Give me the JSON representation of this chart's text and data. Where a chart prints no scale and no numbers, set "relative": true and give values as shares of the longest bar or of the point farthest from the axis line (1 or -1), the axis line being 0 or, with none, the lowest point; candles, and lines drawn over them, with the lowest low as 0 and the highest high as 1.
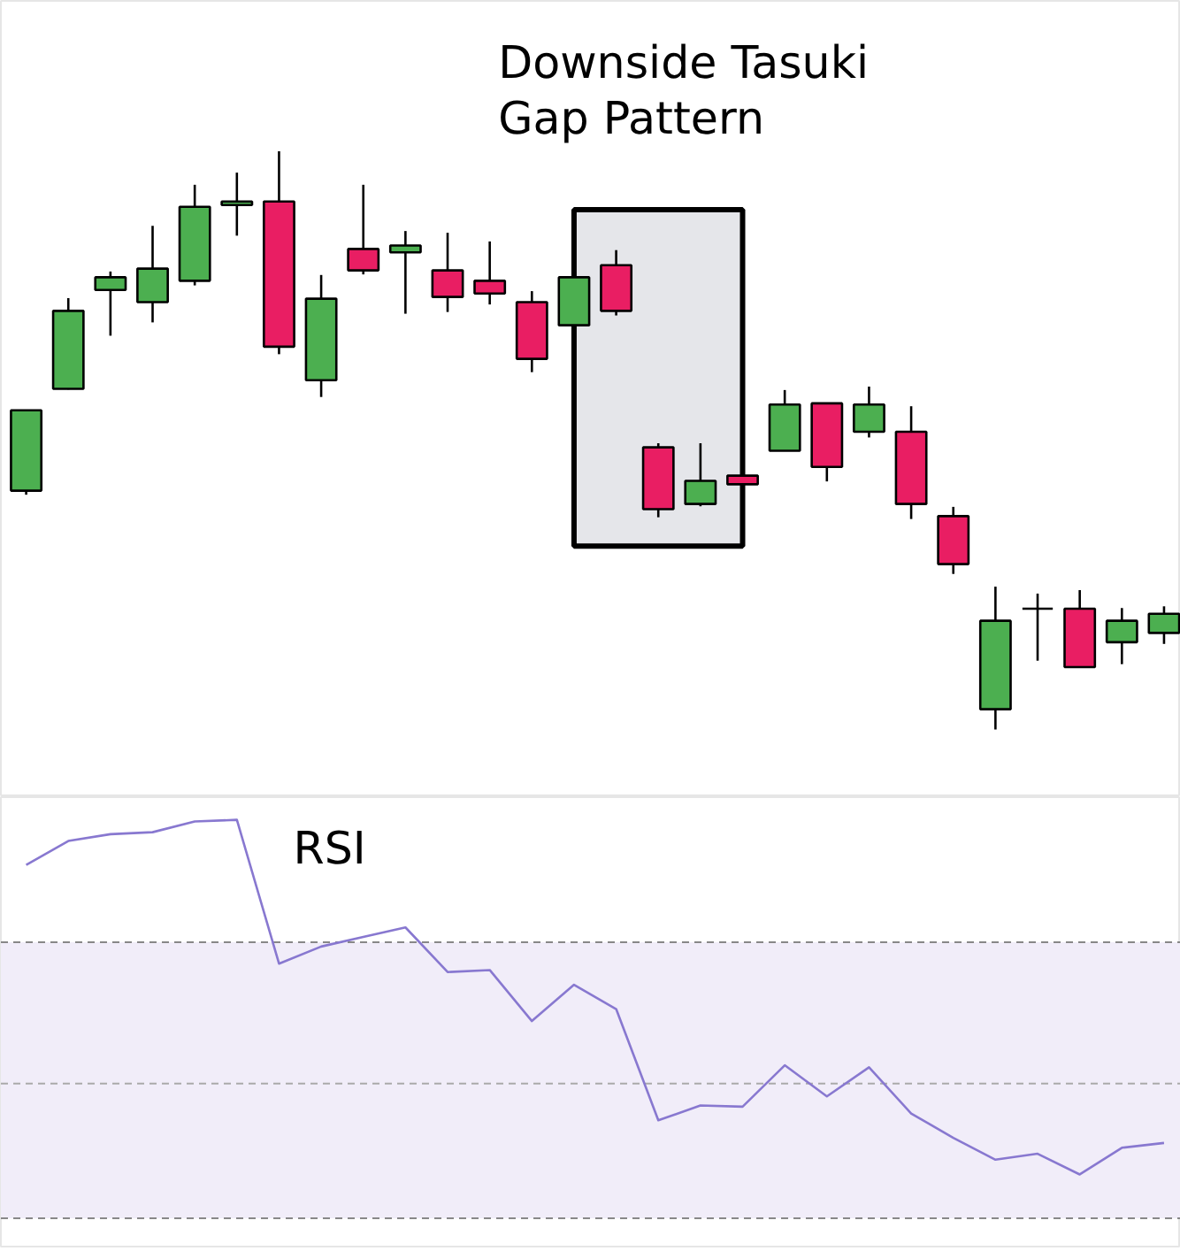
{
  "chart_data": [
    {
      "type": "candlestick",
      "relative": true,
      "tick_labels": false,
      "grid": false,
      "categories": [
        null,
        null,
        null,
        null,
        null,
        null,
        null,
        null,
        null,
        null,
        null,
        null,
        null,
        null,
        null,
        null,
        null,
        null,
        null,
        null,
        null,
        null,
        null,
        null,
        null,
        null,
        null,
        null
      ],
      "ohlc": [
        [
          0.413,
          0.553,
          0.406,
          0.552
        ],
        [
          0.589,
          0.746,
          0.588,
          0.724
        ],
        [
          0.76,
          0.792,
          0.681,
          0.782
        ],
        [
          0.739,
          0.871,
          0.704,
          0.797
        ],
        [
          0.776,
          0.942,
          0.768,
          0.904
        ],
        [
          0.907,
          0.963,
          0.854,
          0.913
        ],
        [
          0.913,
          1.0,
          0.649,
          0.662
        ],
        [
          0.604,
          0.786,
          0.575,
          0.745
        ],
        [
          0.831,
          0.942,
          0.787,
          0.794
        ],
        [
          0.825,
          0.862,
          0.719,
          0.837
        ],
        [
          0.794,
          0.859,
          0.722,
          0.748
        ],
        [
          0.776,
          0.844,
          0.735,
          0.754
        ],
        [
          0.739,
          0.758,
          0.618,
          0.641
        ],
        [
          0.699,
          0.782,
          0.699,
          0.782
        ],
        [
          0.803,
          0.829,
          0.716,
          0.724
        ],
        [
          0.488,
          0.495,
          0.367,
          0.381
        ],
        [
          0.39,
          0.495,
          0.386,
          0.43
        ],
        [
          0.439,
          0.439,
          0.424,
          0.424
        ],
        [
          0.482,
          0.587,
          0.482,
          0.562
        ],
        [
          0.564,
          0.564,
          0.429,
          0.454
        ],
        [
          0.515,
          0.593,
          0.505,
          0.562
        ],
        [
          0.515,
          0.559,
          0.364,
          0.39
        ],
        [
          0.369,
          0.385,
          0.269,
          0.286
        ],
        [
          0.035,
          0.247,
          0.0,
          0.188
        ],
        [
          0.209,
          0.235,
          0.119,
          0.209
        ],
        [
          0.209,
          0.241,
          0.108,
          0.108
        ],
        [
          0.151,
          0.21,
          0.113,
          0.188
        ],
        [
          0.167,
          0.213,
          0.148,
          0.2
        ]
      ],
      "colors": [
        "#4caf50",
        "#4caf50",
        "#4caf50",
        "#4caf50",
        "#4caf50",
        "#4caf50",
        "#e91e63",
        "#4caf50",
        "#e91e63",
        "#4caf50",
        "#e91e63",
        "#e91e63",
        "#e91e63",
        "#4caf50",
        "#e91e63",
        "#e91e63",
        "#4caf50",
        "#e91e63",
        "#4caf50",
        "#e91e63",
        "#4caf50",
        "#e91e63",
        "#e91e63",
        "#4caf50",
        "#000000",
        "#e91e63",
        "#4caf50",
        "#4caf50"
      ],
      "annotations": [
        "Downside Tasuki Gap Pattern"
      ]
    },
    {
      "type": "line",
      "relative": true,
      "tick_labels": false,
      "grid": false,
      "marker": "none",
      "line_style": "solid",
      "categories": [
        null,
        null,
        null,
        null,
        null,
        null,
        null,
        null,
        null,
        null,
        null,
        null,
        null,
        null,
        null,
        null,
        null,
        null,
        null,
        null,
        null,
        null,
        null,
        null,
        null,
        null,
        null,
        null
      ],
      "series": [
        {
          "color": "#8878d0",
          "values": [
            0.887,
            0.947,
            0.964,
            0.969,
            0.996,
            1.0,
            0.639,
            0.682,
            0.706,
            0.73,
            0.618,
            0.623,
            0.495,
            0.586,
            0.525,
            0.246,
            0.283,
            0.28,
            0.384,
            0.306,
            0.379,
            0.263,
            0.202,
            0.147,
            0.162,
            0.11,
            0.177,
            0.189
          ]
        }
      ],
      "ref_lines": [
        {
          "axis": "y",
          "value": 0.693,
          "color": "#888888",
          "line_style": "dashed"
        },
        {
          "axis": "y",
          "value": 0.338,
          "color": "#aaaaaa",
          "line_style": "dashed"
        },
        {
          "axis": "y",
          "value": 0,
          "color": "#888888",
          "line_style": "dashed"
        }
      ],
      "bands": [
        {
          "axis": "y",
          "from": 0,
          "to": 0.693,
          "color": "#f1edf9"
        }
      ],
      "annotations": [
        "RSI"
      ]
    }
  ]
}
